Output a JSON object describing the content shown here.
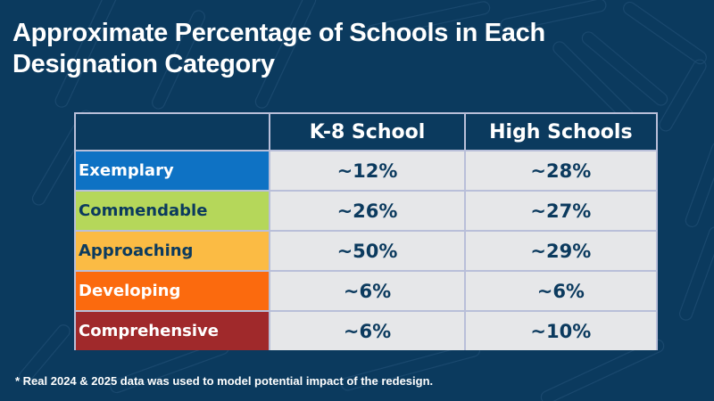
{
  "title": "Approximate Percentage of Schools in Each Designation Category",
  "title_lines": [
    "Approximate Percentage of Schools in Each",
    "Designation Category"
  ],
  "table": {
    "headers": [
      "",
      "K-8 School",
      "High Schools"
    ],
    "rows": [
      {
        "category": "Exemplary",
        "color": "#0e72c4",
        "text_color": "#ffffff",
        "k8": "~12%",
        "high": "~28%"
      },
      {
        "category": "Commendable",
        "color": "#b5d75a",
        "text_color": "#0b3a5e",
        "k8": "~26%",
        "high": "~27%"
      },
      {
        "category": "Approaching",
        "color": "#fbbb44",
        "text_color": "#0b3a5e",
        "k8": "~50%",
        "high": "~29%"
      },
      {
        "category": "Developing",
        "color": "#fb6a0e",
        "text_color": "#ffffff",
        "k8": "~6%",
        "high": "~6%"
      },
      {
        "category": "Comprehensive",
        "color": "#a0292b",
        "text_color": "#ffffff",
        "k8": "~6%",
        "high": "~10%"
      }
    ]
  },
  "footnote": "* Real 2024 & 2025 data was used to model potential impact of the redesign.",
  "colors": {
    "background": "#0b3a5e",
    "border": "#b9bfd9",
    "cell": "#e6e7e9"
  }
}
